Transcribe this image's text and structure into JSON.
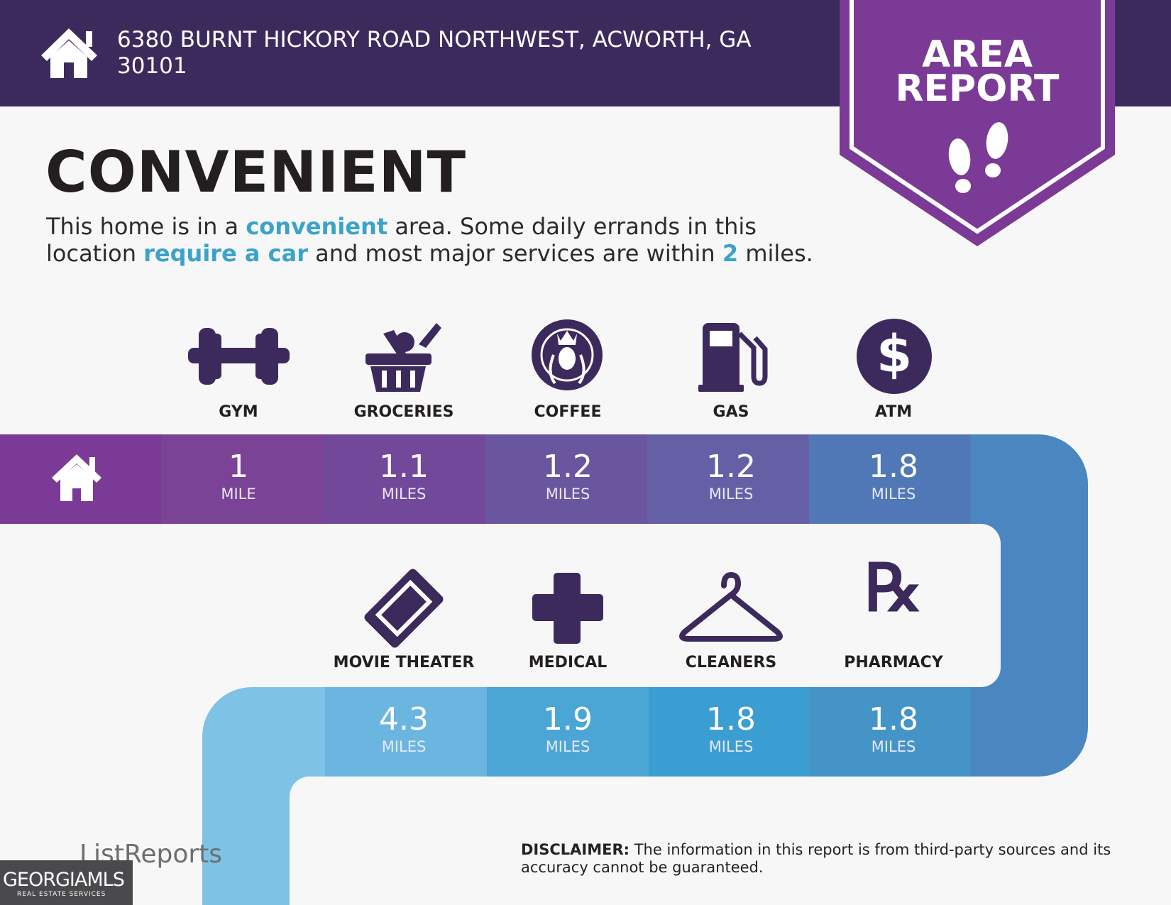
{
  "header": {
    "address": "6380 BURNT HICKORY ROAD NORTHWEST, ACWORTH, GA 30101"
  },
  "badge": {
    "line1": "AREA",
    "line2": "REPORT"
  },
  "section": {
    "title": "CONVENIENT",
    "description": [
      "This home is in a ",
      "convenient",
      " area. Some daily errands in this location ",
      "require a car",
      " and most major services are within ",
      "2",
      " miles."
    ]
  },
  "amenities": [
    {
      "label": "GYM",
      "distance": 1,
      "unit": "MILE"
    },
    {
      "label": "GROCERIES",
      "distance": 1.1,
      "unit": "MILES"
    },
    {
      "label": "COFFEE",
      "distance": 1.2,
      "unit": "MILES"
    },
    {
      "label": "GAS",
      "distance": 1.2,
      "unit": "MILES"
    },
    {
      "label": "ATM",
      "distance": 1.8,
      "unit": "MILES"
    },
    {
      "label": "MOVIE THEATER",
      "distance": 4.3,
      "unit": "MILES"
    },
    {
      "label": "MEDICAL",
      "distance": 1.9,
      "unit": "MILES"
    },
    {
      "label": "CLEANERS",
      "distance": 1.8,
      "unit": "MILES"
    },
    {
      "label": "PHARMACY",
      "distance": 1.8,
      "unit": "MILES"
    }
  ],
  "disclaimer": {
    "label": "DISCLAIMER:",
    "text": "The information in this report is from third-party sources and its accuracy cannot be guaranteed."
  },
  "footer": {
    "brand": "ListReports",
    "mls": "GEORGIAMLS",
    "mls_tagline": "REAL ESTATE SERVICES"
  }
}
